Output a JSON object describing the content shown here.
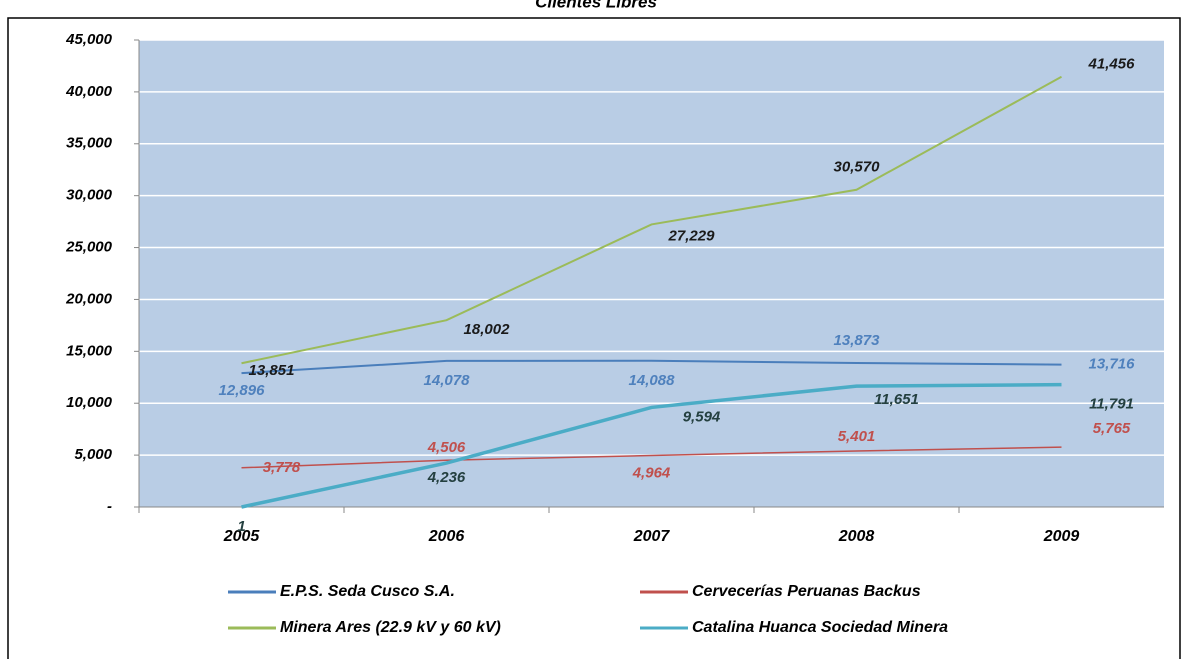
{
  "chart_data": {
    "type": "line",
    "title": "Clientes Libres",
    "categories": [
      "2005",
      "2006",
      "2007",
      "2008",
      "2009"
    ],
    "ylim": [
      0,
      45000
    ],
    "yticks": [
      {
        "value": 0,
        "label": "-"
      },
      {
        "value": 5000,
        "label": "5,000"
      },
      {
        "value": 10000,
        "label": "10,000"
      },
      {
        "value": 15000,
        "label": "15,000"
      },
      {
        "value": 20000,
        "label": "20,000"
      },
      {
        "value": 25000,
        "label": "25,000"
      },
      {
        "value": 30000,
        "label": "30,000"
      },
      {
        "value": 35000,
        "label": "35,000"
      },
      {
        "value": 40000,
        "label": "40,000"
      },
      {
        "value": 45000,
        "label": "45,000"
      }
    ],
    "grid": true,
    "series": [
      {
        "name": "E.P.S. Seda Cusco S.A.",
        "color": "#4a7ebb",
        "label_color": "#4f81bd",
        "values": [
          12896,
          14078,
          14088,
          13873,
          13716
        ],
        "value_labels": [
          "12,896",
          "14,078",
          "14,088",
          "13,873",
          "13,716"
        ]
      },
      {
        "name": "Cervecerías Peruanas Backus",
        "color": "#c0504d",
        "label_color": "#c0504d",
        "values": [
          3778,
          4506,
          4964,
          5401,
          5765
        ],
        "value_labels": [
          "3,778",
          "4,506",
          "4,964",
          "5,401",
          "5,765"
        ]
      },
      {
        "name": "Minera Ares (22.9 kV y 60 kV)",
        "color": "#9bbb59",
        "label_color": "#1a1a1a",
        "values": [
          13851,
          18002,
          27229,
          30570,
          41456
        ],
        "value_labels": [
          "13,851",
          "18,002",
          "27,229",
          "30,570",
          "41,456"
        ]
      },
      {
        "name": "Catalina Huanca Sociedad Minera",
        "color": "#4bacc6",
        "label_color": "#244040",
        "values": [
          1,
          4236,
          9594,
          11651,
          11791
        ],
        "value_labels": [
          "1",
          "4,236",
          "9,594",
          "11,651",
          "11,791"
        ]
      }
    ]
  }
}
